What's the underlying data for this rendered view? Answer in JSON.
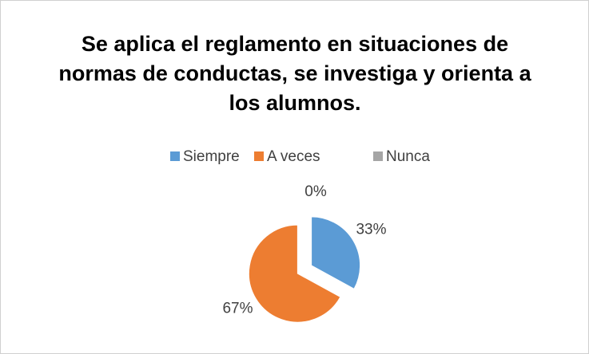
{
  "chart_data": {
    "type": "pie",
    "title": "Se aplica el reglamento en situaciones de normas de conductas, se investiga y orienta a los alumnos.",
    "categories": [
      "Siempre",
      "A veces",
      "Nunca"
    ],
    "values": [
      33,
      67,
      0
    ],
    "value_labels": [
      "33%",
      "67%",
      "0%"
    ],
    "colors": [
      "#5b9bd5",
      "#ed7d31",
      "#a5a5a5"
    ],
    "legend": "top"
  }
}
